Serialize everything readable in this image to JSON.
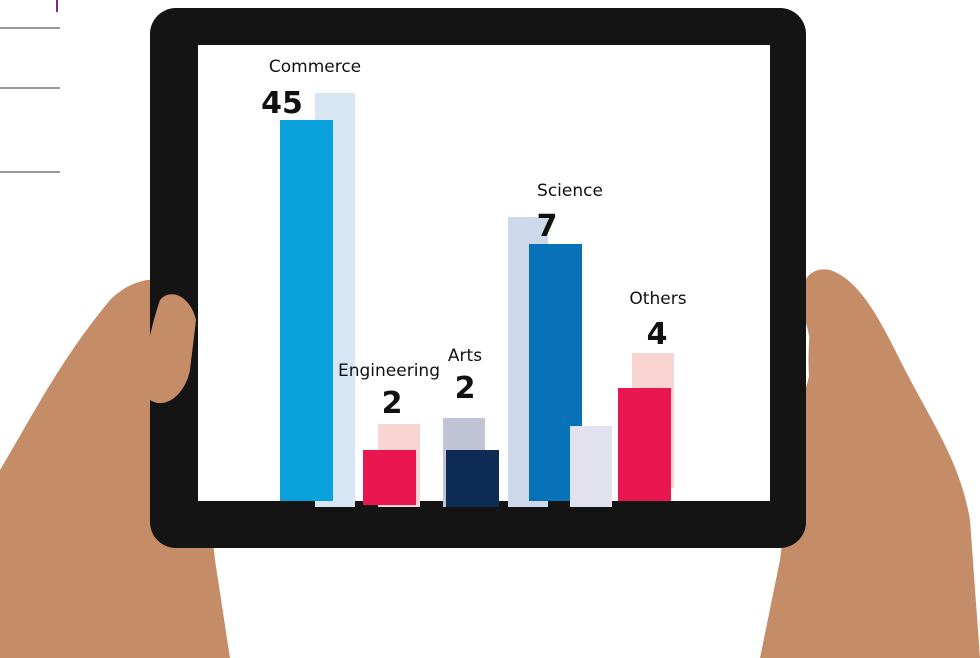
{
  "items": [
    {
      "label": "Commerce",
      "value": "45"
    },
    {
      "label": "Engineering",
      "value": "2"
    },
    {
      "label": "Arts",
      "value": "2"
    },
    {
      "label": "Science",
      "value": "7"
    },
    {
      "label": "Others",
      "value": "4"
    }
  ]
}
